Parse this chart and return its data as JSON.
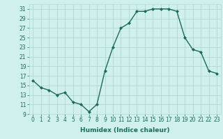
{
  "x": [
    0,
    1,
    2,
    3,
    4,
    5,
    6,
    7,
    8,
    9,
    10,
    11,
    12,
    13,
    14,
    15,
    16,
    17,
    18,
    19,
    20,
    21,
    22,
    23
  ],
  "y": [
    16,
    14.5,
    14,
    13,
    13.5,
    11.5,
    11,
    9.5,
    11,
    18,
    23,
    27,
    28,
    30.5,
    30.5,
    31,
    31,
    31,
    30.5,
    25,
    22.5,
    22,
    18,
    17.5
  ],
  "line_color": "#1a6b5a",
  "marker": "D",
  "marker_size": 2.0,
  "bg_color": "#cff0ec",
  "grid_color": "#b0d8d0",
  "xlabel": "Humidex (Indice chaleur)",
  "xlim": [
    -0.5,
    23.5
  ],
  "ylim": [
    9,
    32
  ],
  "yticks": [
    9,
    11,
    13,
    15,
    17,
    19,
    21,
    23,
    25,
    27,
    29,
    31
  ],
  "xticks": [
    0,
    1,
    2,
    3,
    4,
    5,
    6,
    7,
    8,
    9,
    10,
    11,
    12,
    13,
    14,
    15,
    16,
    17,
    18,
    19,
    20,
    21,
    22,
    23
  ],
  "tick_label_fontsize": 5.5,
  "xlabel_fontsize": 6.5,
  "line_width": 1.0
}
